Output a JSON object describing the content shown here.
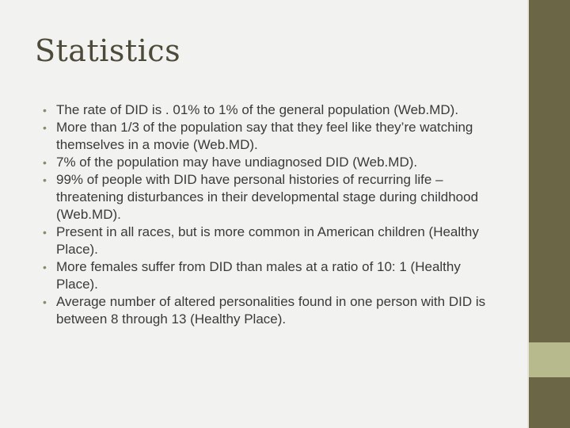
{
  "slide": {
    "title": "Statistics",
    "bullet_glyph": "•",
    "bullets": [
      "The rate of DID is . 01% to 1% of the general population (Web.MD).",
      "More than 1/3 of the population say that they feel like they’re watching themselves in a movie (Web.MD).",
      "7% of the population may have undiagnosed DID (Web.MD).",
      "99% of people with DID have personal histories of recurring life –threatening disturbances in their developmental stage during childhood (Web.MD).",
      "Present in all races, but is more common in American children (Healthy Place).",
      "More females suffer from DID than males at a ratio of 10: 1 (Healthy Place).",
      "Average number of altered personalities found in one person with DID is between 8 through 13 (Healthy Place)."
    ]
  },
  "colors": {
    "background": "#f2f2f0",
    "side_bar": "#6b6646",
    "side_accent": "#b7ba8c",
    "title": "#4d4a3a",
    "body_text": "#3a3a3a",
    "bullet": "#8c8a6a"
  }
}
